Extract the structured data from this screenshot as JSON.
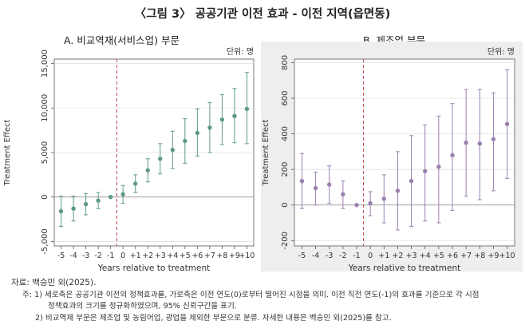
{
  "figure_title": "〈그림 3〉 공공기관 이전 효과 - 이전 지역(읍면동)",
  "source": "자료: 백승민 외(2025).",
  "notes": {
    "note1_line1": "주: 1) 세로축은 공공기관 이전의 정책효과를, 가로축은 이전 연도(0)로부터 떨어진 시점을 의미. 이전 직전 연도(-1)의 효과를 기준으로 각 시점",
    "note1_line2": "정책효과의 크기를 정규화하였으며, 95% 신뢰구간을 표기.",
    "note2": "2) 비교역재 부문은 제조업 및 농림어업, 광업을 제외한 부문으로 분류. 자세한 내용은 백승민 외(2025)를 참고."
  },
  "colors": {
    "panel_a_series": "#5e9a82",
    "panel_b_series": "#9b7fae",
    "reference_line": "#c0444e",
    "plot_background": "#ffffff",
    "outer_background_b": "#eeeeee"
  },
  "chart_data": [
    {
      "type": "scatter",
      "panel_title": "A. 비교역재(서비스업) 부문",
      "unit_label": "단위: 명",
      "xlabel": "Years relative to treatment",
      "ylabel": "Treatment Effect",
      "x_ticks": [
        "-5",
        "-4",
        "-3",
        "-2",
        "-1",
        "0",
        "+1",
        "+2",
        "+3",
        "+4",
        "+5",
        "+6",
        "+7",
        "+8",
        "+9",
        "+10"
      ],
      "y_ticks": [
        "-5,000",
        "0",
        "5,000",
        "10,000",
        "15,000"
      ],
      "y_tick_values": [
        -5000,
        0,
        5000,
        10000,
        15000
      ],
      "ylim": [
        -5500,
        15500
      ],
      "vertical_reference": -0.5,
      "horizontal_reference": 0,
      "grid": true,
      "series": [
        {
          "x": [
            -5,
            -4,
            -3,
            -2,
            -1,
            0,
            1,
            2,
            3,
            4,
            5,
            6,
            7,
            8,
            9,
            10
          ],
          "y": [
            -1600,
            -1300,
            -800,
            -400,
            0,
            300,
            1500,
            3000,
            4300,
            5300,
            6300,
            7200,
            7800,
            8700,
            9100,
            9900
          ],
          "ci_low": [
            -3300,
            -2700,
            -2000,
            -1300,
            0,
            -700,
            500,
            1700,
            2600,
            3200,
            3800,
            4600,
            5000,
            5900,
            6100,
            6000
          ],
          "ci_high": [
            100,
            100,
            400,
            500,
            0,
            1300,
            2500,
            4300,
            6000,
            7400,
            8800,
            9900,
            10600,
            11500,
            12200,
            14000
          ]
        }
      ]
    },
    {
      "type": "scatter",
      "panel_title": "B. 제조업 부문",
      "unit_label": "단위: 명",
      "xlabel": "Years relative to treatment",
      "ylabel": "Treatment Effect",
      "x_ticks": [
        "-5",
        "-4",
        "-3",
        "-2",
        "-1",
        "0",
        "+1",
        "+2",
        "+3",
        "+4",
        "+5",
        "+6",
        "+7",
        "+8",
        "+9",
        "+10"
      ],
      "y_ticks": [
        "-200",
        "0",
        "200",
        "400",
        "600",
        "800"
      ],
      "y_tick_values": [
        -200,
        0,
        200,
        400,
        600,
        800
      ],
      "ylim": [
        -230,
        820
      ],
      "vertical_reference": -0.5,
      "horizontal_reference": 0,
      "grid": true,
      "series": [
        {
          "x": [
            -5,
            -4,
            -3,
            -2,
            -1,
            0,
            1,
            2,
            3,
            4,
            5,
            6,
            7,
            8,
            9,
            10
          ],
          "y": [
            135,
            95,
            115,
            60,
            0,
            10,
            35,
            80,
            135,
            190,
            215,
            280,
            350,
            345,
            370,
            455
          ],
          "ci_low": [
            -20,
            0,
            10,
            -20,
            0,
            -60,
            -100,
            -140,
            -120,
            -90,
            -100,
            -30,
            50,
            30,
            80,
            150
          ],
          "ci_high": [
            290,
            185,
            220,
            135,
            0,
            75,
            170,
            300,
            390,
            450,
            500,
            570,
            650,
            650,
            630,
            760
          ]
        }
      ]
    }
  ]
}
